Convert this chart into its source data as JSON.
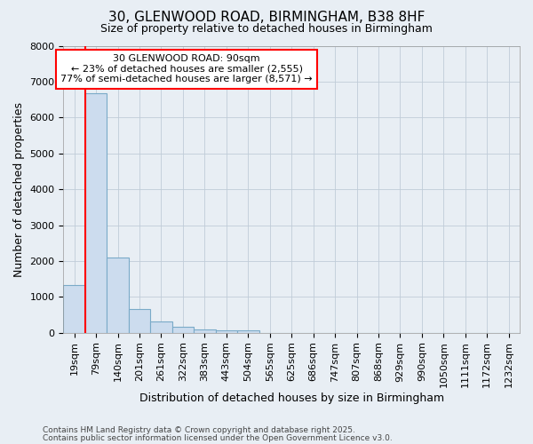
{
  "title_line1": "30, GLENWOOD ROAD, BIRMINGHAM, B38 8HF",
  "title_line2": "Size of property relative to detached houses in Birmingham",
  "xlabel": "Distribution of detached houses by size in Birmingham",
  "ylabel": "Number of detached properties",
  "categories": [
    "19sqm",
    "79sqm",
    "140sqm",
    "201sqm",
    "261sqm",
    "322sqm",
    "383sqm",
    "443sqm",
    "504sqm",
    "565sqm",
    "625sqm",
    "686sqm",
    "747sqm",
    "807sqm",
    "868sqm",
    "929sqm",
    "990sqm",
    "1050sqm",
    "1111sqm",
    "1172sqm",
    "1232sqm"
  ],
  "values": [
    1320,
    6680,
    2100,
    650,
    310,
    160,
    100,
    60,
    60,
    0,
    0,
    0,
    0,
    0,
    0,
    0,
    0,
    0,
    0,
    0,
    0
  ],
  "bar_color": "#ccdcee",
  "bar_edge_color": "#7aaac8",
  "red_line_x": 0.5,
  "annotation_title": "30 GLENWOOD ROAD: 90sqm",
  "annotation_line2": "← 23% of detached houses are smaller (2,555)",
  "annotation_line3": "77% of semi-detached houses are larger (8,571) →",
  "ylim": [
    0,
    8000
  ],
  "background_color": "#e8eef4",
  "plot_bg_color": "#e8eef4",
  "grid_color": "#c0ccd8",
  "footer_line1": "Contains HM Land Registry data © Crown copyright and database right 2025.",
  "footer_line2": "Contains public sector information licensed under the Open Government Licence v3.0.",
  "title_fontsize": 11,
  "subtitle_fontsize": 9,
  "label_fontsize": 9,
  "tick_fontsize": 8,
  "annotation_fontsize": 8
}
